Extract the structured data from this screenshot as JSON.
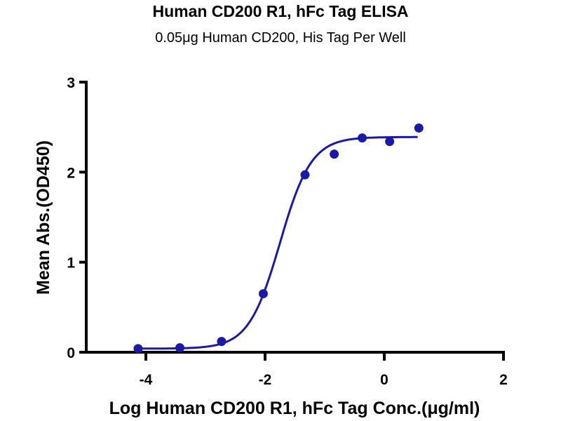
{
  "chart_data": {
    "type": "scatter",
    "title": "Human CD200 R1, hFc Tag ELISA",
    "subtitle": "0.05μg Human CD200, His Tag Per Well",
    "xlabel": "Log Human CD200 R1, hFc Tag Conc.(μg/ml)",
    "ylabel": "Mean Abs.(OD450)",
    "xlim": [
      -5,
      2
    ],
    "ylim": [
      0,
      3
    ],
    "xticks": [
      -4,
      -2,
      0,
      2
    ],
    "yticks": [
      0,
      1,
      2,
      3
    ],
    "grid": false,
    "color": "#1a1aa6",
    "series": [
      {
        "x": [
          -4.13,
          -3.43,
          -2.73,
          -2.03,
          -1.33,
          -0.84,
          -0.37,
          0.09,
          0.58
        ],
        "y": [
          0.04,
          0.05,
          0.12,
          0.65,
          1.97,
          2.2,
          2.38,
          2.34,
          2.49
        ]
      }
    ],
    "fit": {
      "model": "4PL sigmoid",
      "bottom": 0.04,
      "top": 2.39,
      "logEC50": -1.75,
      "hill": 1.65,
      "x_range": [
        -4.13,
        0.56
      ]
    }
  }
}
